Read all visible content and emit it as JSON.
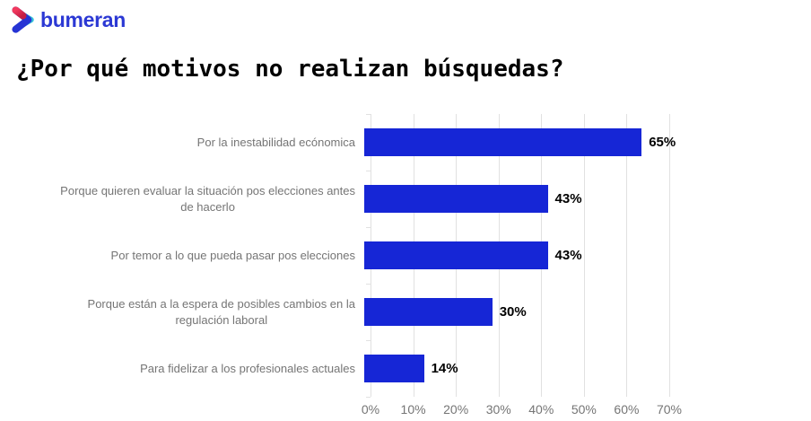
{
  "logo": {
    "brand": "bumeran"
  },
  "title": "¿Por qué motivos no realizan búsquedas?",
  "chart_data": {
    "type": "bar",
    "orientation": "horizontal",
    "title": "¿Por qué motivos no realizan búsquedas?",
    "categories": [
      "Por la inestabilidad ecónomica",
      "Porque quieren evaluar la situación pos elecciones antes\nde hacerlo",
      "Por temor a lo que pueda pasar pos elecciones",
      "Porque están a la espera de posibles cambios en la\nregulación laboral",
      "Para fidelizar a los profesionales actuales"
    ],
    "values": [
      65,
      43,
      43,
      30,
      14
    ],
    "value_labels": [
      "65%",
      "43%",
      "43%",
      "30%",
      "14%"
    ],
    "x_ticks": [
      {
        "value": 0,
        "label": "0%"
      },
      {
        "value": 10,
        "label": "10%"
      },
      {
        "value": 20,
        "label": "20%"
      },
      {
        "value": 30,
        "label": "30%"
      },
      {
        "value": 40,
        "label": "40%"
      },
      {
        "value": 50,
        "label": "50%"
      },
      {
        "value": 60,
        "label": "60%"
      },
      {
        "value": 70,
        "label": "70%"
      }
    ],
    "xlim": [
      0,
      70
    ],
    "grid": true,
    "legend": "none",
    "bar_color": "#1626D6",
    "grid_color": "#E1E1E1",
    "axis_text_color": "#757575",
    "category_text_color": "#757575",
    "value_text_color": "#000000"
  },
  "brand_colors": {
    "logo_blue": "#2B38D4",
    "logo_red_top": "#F23A5E",
    "logo_red_bottom": "#C41E44",
    "logo_cyan": "#35C3D8"
  }
}
